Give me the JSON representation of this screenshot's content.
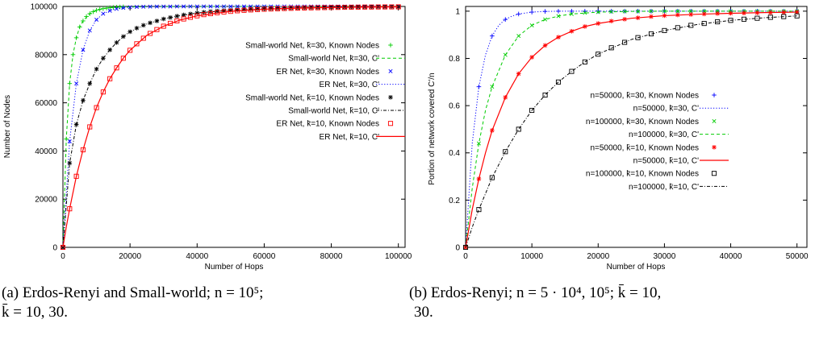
{
  "chart_data": [
    {
      "type": "line",
      "xlabel": "Number of Hops",
      "ylabel": "Number of Nodes",
      "xlim": [
        0,
        102000
      ],
      "ylim": [
        0,
        100000
      ],
      "xticks": [
        "0",
        "20000",
        "40000",
        "60000",
        "80000",
        "100000"
      ],
      "yticks": [
        "0",
        "20000",
        "40000",
        "60000",
        "80000",
        "100000"
      ],
      "grid": false,
      "legend_position": "center-right",
      "series": [
        {
          "name": "Small-world Net, k̄=30, Known Nodes",
          "style": "points",
          "marker": "plus",
          "color": "#00cc00",
          "x": [
            0,
            1000,
            2000,
            3000,
            4000,
            5000,
            6000,
            7000,
            8000,
            9000,
            10000,
            11000,
            12000,
            13000,
            14000,
            15000,
            16000,
            17000,
            18000
          ],
          "y": [
            0,
            45000,
            68000,
            80000,
            87000,
            91500,
            94000,
            95800,
            97000,
            97800,
            98400,
            98800,
            99100,
            99300,
            99500,
            99600,
            99700,
            99800,
            99850
          ]
        },
        {
          "name": "Small-world Net, k̄=30, C'",
          "style": "dash",
          "color": "#00cc00",
          "x": [
            0,
            1000,
            2000,
            3000,
            4000,
            5000,
            6000,
            8000,
            10000,
            12000,
            15000,
            20000,
            30000,
            50000,
            100000
          ],
          "y": [
            0,
            45000,
            68000,
            80000,
            87000,
            91500,
            94000,
            97000,
            98400,
            99100,
            99600,
            99850,
            99950,
            100000,
            100000
          ]
        },
        {
          "name": "ER Net, k̄=30, Known Nodes",
          "style": "points",
          "marker": "x",
          "color": "#0000ff",
          "x": [
            0,
            2000,
            4000,
            6000,
            8000,
            10000,
            12000,
            14000,
            16000,
            18000,
            20000,
            22000,
            24000,
            26000,
            28000,
            30000,
            32000,
            34000,
            36000,
            38000,
            40000,
            42000,
            44000,
            46000,
            48000,
            50000,
            52000,
            54000,
            56000,
            58000,
            60000,
            62000,
            64000,
            66000,
            68000,
            70000,
            72000,
            74000,
            76000,
            78000,
            80000,
            82000,
            84000,
            86000,
            88000,
            90000,
            92000,
            94000,
            96000,
            98000,
            100000
          ],
          "y": [
            0,
            44000,
            68000,
            82000,
            90000,
            94500,
            97000,
            98200,
            99000,
            99400,
            99650,
            99780,
            99860,
            99910,
            99940,
            99960,
            99970,
            99980,
            99985,
            99990,
            99990,
            99992,
            99994,
            99995,
            99996,
            99997,
            99997,
            99998,
            99998,
            99998,
            99999,
            99999,
            99999,
            99999,
            99999,
            100000,
            100000,
            100000,
            100000,
            100000,
            100000,
            100000,
            100000,
            100000,
            100000,
            100000,
            100000,
            100000,
            100000,
            100000,
            100000
          ]
        },
        {
          "name": "ER Net, k̄=30, C'",
          "style": "dot",
          "color": "#0000ff",
          "x": [
            0,
            2000,
            4000,
            6000,
            8000,
            10000,
            12000,
            14000,
            16000,
            18000,
            20000,
            25000,
            30000,
            40000,
            60000,
            100000
          ],
          "y": [
            0,
            44000,
            68000,
            82000,
            90000,
            94500,
            97000,
            98200,
            99000,
            99400,
            99650,
            99900,
            99960,
            99990,
            100000,
            100000
          ]
        },
        {
          "name": "Small-world Net, k̄=10, Known Nodes",
          "style": "points",
          "marker": "star",
          "color": "#000000",
          "x": [
            0,
            2000,
            4000,
            6000,
            8000,
            10000,
            12000,
            14000,
            16000,
            18000,
            20000,
            22000,
            24000,
            26000,
            28000,
            30000,
            32000,
            34000,
            36000,
            38000,
            40000,
            42000,
            44000,
            46000,
            48000,
            50000,
            52000,
            54000,
            56000,
            58000,
            60000,
            62000,
            64000,
            66000,
            68000,
            70000,
            72000,
            74000,
            76000,
            78000,
            80000,
            82000,
            84000,
            86000,
            88000,
            90000,
            92000,
            94000,
            96000,
            98000,
            100000
          ],
          "y": [
            0,
            35000,
            51000,
            61000,
            68000,
            74000,
            78500,
            82000,
            85000,
            87500,
            89500,
            91000,
            92200,
            93200,
            94000,
            94800,
            95400,
            96000,
            96500,
            96900,
            97300,
            97600,
            97900,
            98100,
            98300,
            98450,
            98600,
            98750,
            98850,
            98950,
            99050,
            99150,
            99220,
            99300,
            99370,
            99430,
            99480,
            99530,
            99580,
            99620,
            99650,
            99680,
            99710,
            99740,
            99760,
            99780,
            99800,
            99820,
            99840,
            99860,
            99880
          ]
        },
        {
          "name": "Small-world Net, k̄=10, C'",
          "style": "dashdot",
          "color": "#000000",
          "x": [
            0,
            2000,
            4000,
            6000,
            8000,
            10000,
            12000,
            14000,
            16000,
            18000,
            20000,
            25000,
            30000,
            35000,
            40000,
            50000,
            60000,
            70000,
            80000,
            90000,
            100000
          ],
          "y": [
            0,
            35000,
            51000,
            61000,
            68000,
            74000,
            78500,
            82000,
            85000,
            87500,
            89500,
            92700,
            94800,
            96200,
            97300,
            98450,
            99050,
            99430,
            99650,
            99780,
            99880
          ]
        },
        {
          "name": "ER Net, k̄=10, Known Nodes",
          "style": "points",
          "marker": "square",
          "color": "#ff0000",
          "x": [
            0,
            2000,
            4000,
            6000,
            8000,
            10000,
            12000,
            14000,
            16000,
            18000,
            20000,
            22000,
            24000,
            26000,
            28000,
            30000,
            32000,
            34000,
            36000,
            38000,
            40000,
            42000,
            44000,
            46000,
            48000,
            50000,
            52000,
            54000,
            56000,
            58000,
            60000,
            62000,
            64000,
            66000,
            68000,
            70000,
            72000,
            74000,
            76000,
            78000,
            80000,
            82000,
            84000,
            86000,
            88000,
            90000,
            92000,
            94000,
            96000,
            98000,
            100000
          ],
          "y": [
            0,
            16000,
            29500,
            40500,
            50000,
            58000,
            64500,
            70000,
            74500,
            78500,
            81800,
            84500,
            86800,
            88800,
            90400,
            91800,
            93000,
            94000,
            94800,
            95500,
            96100,
            96600,
            97000,
            97400,
            97700,
            97950,
            98200,
            98400,
            98550,
            98700,
            98850,
            98950,
            99050,
            99150,
            99230,
            99300,
            99370,
            99430,
            99480,
            99530,
            99570,
            99610,
            99650,
            99680,
            99710,
            99740,
            99760,
            99780,
            99800,
            99820,
            99840
          ]
        },
        {
          "name": "ER Net, k̄=10, C'",
          "style": "solid",
          "color": "#ff0000",
          "x": [
            0,
            1000,
            2000,
            4000,
            6000,
            8000,
            10000,
            12000,
            14000,
            16000,
            18000,
            20000,
            25000,
            30000,
            35000,
            40000,
            50000,
            60000,
            70000,
            80000,
            90000,
            100000
          ],
          "y": [
            0,
            8500,
            16000,
            29500,
            40500,
            50000,
            58000,
            64500,
            70000,
            74500,
            78500,
            81800,
            88000,
            91800,
            94400,
            96100,
            97950,
            98850,
            99300,
            99570,
            99740,
            99840
          ]
        }
      ]
    },
    {
      "type": "line",
      "xlabel": "Number of Hops",
      "ylabel": "Portion of network covered C'/n",
      "xlim": [
        0,
        51500
      ],
      "ylim": [
        0,
        1.02
      ],
      "xticks": [
        "0",
        "10000",
        "20000",
        "30000",
        "40000",
        "50000"
      ],
      "yticks": [
        "0",
        "0.2",
        "0.4",
        "0.6",
        "0.8",
        "1"
      ],
      "grid": false,
      "legend_position": "center-right",
      "series": [
        {
          "name": "n=50000, k̄=30, Known Nodes",
          "style": "points",
          "marker": "plus",
          "color": "#0000ff",
          "x": [
            0,
            2000,
            4000,
            6000,
            8000,
            10000,
            12000,
            14000,
            16000,
            18000,
            20000,
            22000,
            24000,
            26000,
            28000,
            30000,
            32000,
            34000,
            36000,
            38000,
            40000,
            42000,
            44000,
            46000,
            48000,
            50000
          ],
          "y": [
            0,
            0.68,
            0.895,
            0.965,
            0.988,
            0.996,
            0.999,
            1,
            1,
            1,
            1,
            1,
            1,
            1,
            1,
            1,
            1,
            1,
            1,
            1,
            1,
            1,
            1,
            1,
            1,
            1
          ]
        },
        {
          "name": "n=50000, k̄=30, C'",
          "style": "dot",
          "color": "#0000ff",
          "x": [
            0,
            1000,
            2000,
            3000,
            4000,
            5000,
            6000,
            7000,
            8000,
            10000,
            12000,
            15000,
            50000
          ],
          "y": [
            0,
            0.44,
            0.68,
            0.815,
            0.895,
            0.94,
            0.965,
            0.979,
            0.988,
            0.996,
            0.999,
            1,
            1
          ]
        },
        {
          "name": "n=100000, k̄=30, Known Nodes",
          "style": "points",
          "marker": "x",
          "color": "#00cc00",
          "x": [
            0,
            2000,
            4000,
            6000,
            8000,
            10000,
            12000,
            14000,
            16000,
            18000,
            20000,
            22000,
            24000,
            26000,
            28000,
            30000,
            32000,
            34000,
            36000,
            38000,
            40000,
            42000,
            44000,
            46000,
            48000,
            50000
          ],
          "y": [
            0,
            0.44,
            0.68,
            0.815,
            0.895,
            0.94,
            0.965,
            0.979,
            0.988,
            0.993,
            0.996,
            0.998,
            0.999,
            0.999,
            1,
            1,
            1,
            1,
            1,
            1,
            1,
            1,
            1,
            1,
            1,
            1
          ]
        },
        {
          "name": "n=100000, k̄=30, C'",
          "style": "dash",
          "color": "#00cc00",
          "x": [
            0,
            1000,
            2000,
            3000,
            4000,
            6000,
            8000,
            10000,
            12000,
            14000,
            16000,
            20000,
            25000,
            30000,
            50000
          ],
          "y": [
            0,
            0.25,
            0.44,
            0.58,
            0.68,
            0.815,
            0.895,
            0.94,
            0.965,
            0.979,
            0.988,
            0.996,
            0.999,
            1,
            1
          ]
        },
        {
          "name": "n=50000, k̄=10, Known Nodes",
          "style": "points",
          "marker": "star",
          "color": "#ff0000",
          "x": [
            0,
            2000,
            4000,
            6000,
            8000,
            10000,
            12000,
            14000,
            16000,
            18000,
            20000,
            22000,
            24000,
            26000,
            28000,
            30000,
            32000,
            34000,
            36000,
            38000,
            40000,
            42000,
            44000,
            46000,
            48000,
            50000
          ],
          "y": [
            0,
            0.29,
            0.495,
            0.635,
            0.735,
            0.805,
            0.855,
            0.89,
            0.915,
            0.935,
            0.948,
            0.958,
            0.966,
            0.972,
            0.977,
            0.981,
            0.984,
            0.986,
            0.988,
            0.99,
            0.991,
            0.992,
            0.993,
            0.994,
            0.995,
            0.996
          ]
        },
        {
          "name": "n=50000, k̄=10, C'",
          "style": "solid",
          "color": "#ff0000",
          "x": [
            0,
            1000,
            2000,
            3000,
            4000,
            6000,
            8000,
            10000,
            12000,
            14000,
            16000,
            18000,
            20000,
            25000,
            30000,
            35000,
            40000,
            45000,
            50000
          ],
          "y": [
            0,
            0.16,
            0.29,
            0.4,
            0.495,
            0.635,
            0.735,
            0.805,
            0.855,
            0.89,
            0.915,
            0.935,
            0.948,
            0.97,
            0.981,
            0.987,
            0.991,
            0.994,
            0.996
          ]
        },
        {
          "name": "n=100000, k̄=10, Known Nodes",
          "style": "points",
          "marker": "square",
          "color": "#000000",
          "x": [
            0,
            2000,
            4000,
            6000,
            8000,
            10000,
            12000,
            14000,
            16000,
            18000,
            20000,
            22000,
            24000,
            26000,
            28000,
            30000,
            32000,
            34000,
            36000,
            38000,
            40000,
            42000,
            44000,
            46000,
            48000,
            50000
          ],
          "y": [
            0,
            0.16,
            0.295,
            0.405,
            0.5,
            0.58,
            0.645,
            0.7,
            0.745,
            0.785,
            0.818,
            0.845,
            0.868,
            0.888,
            0.904,
            0.918,
            0.93,
            0.94,
            0.948,
            0.955,
            0.961,
            0.966,
            0.97,
            0.974,
            0.977,
            0.98
          ]
        },
        {
          "name": "n=100000, k̄=10, C'",
          "style": "dashdot",
          "color": "#000000",
          "x": [
            0,
            1000,
            2000,
            4000,
            6000,
            8000,
            10000,
            12000,
            14000,
            16000,
            18000,
            20000,
            25000,
            30000,
            35000,
            40000,
            45000,
            50000
          ],
          "y": [
            0,
            0.085,
            0.16,
            0.295,
            0.405,
            0.5,
            0.58,
            0.645,
            0.7,
            0.745,
            0.785,
            0.818,
            0.88,
            0.918,
            0.944,
            0.961,
            0.972,
            0.98
          ]
        }
      ]
    }
  ],
  "captions": {
    "a_line1": "(a) Erdos-Renyi and Small-world; n = 10⁵;",
    "a_line2": "k̄ = 10, 30.",
    "b_line1": "(b) Erdos-Renyi; n = 5 · 10⁴, 10⁵; k̄ = 10,",
    "b_line2": "30."
  }
}
